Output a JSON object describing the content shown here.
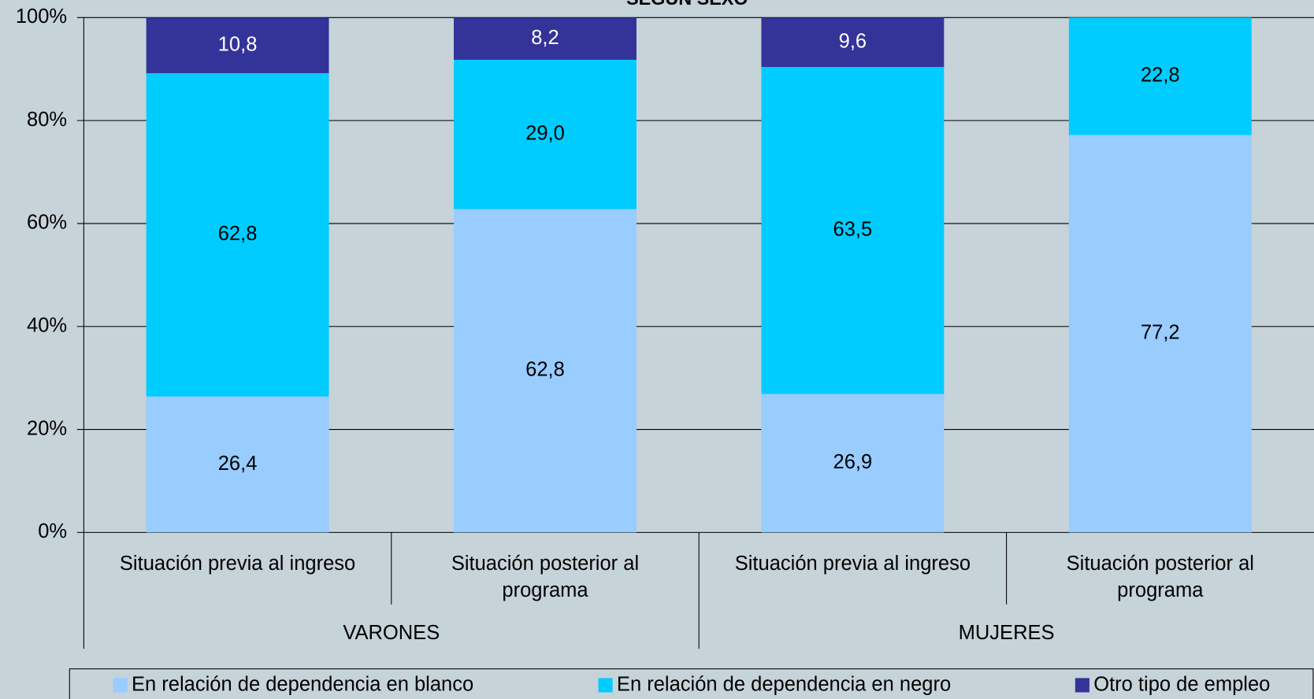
{
  "chart_data": {
    "type": "stacked_bar",
    "title": "SEGÚN SEXO",
    "categories": [
      "Situación previa al ingreso",
      "Situación posterior al programa",
      "Situación previa al ingreso",
      "Situación posterior al programa"
    ],
    "groups": [
      "VARONES",
      "MUJERES"
    ],
    "series": [
      {
        "name": "En relación de dependencia en blanco",
        "color": "#99ccff",
        "values": [
          26.4,
          62.8,
          26.9,
          77.2
        ],
        "value_labels": [
          "26,4",
          "62,8",
          "26,9",
          "77,2"
        ]
      },
      {
        "name": "En relación de dependencia en negro",
        "color": "#00ccff",
        "values": [
          62.8,
          29.0,
          63.5,
          22.8
        ],
        "value_labels": [
          "62,8",
          "29,0",
          "63,5",
          "22,8"
        ]
      },
      {
        "name": "Otro tipo de empleo",
        "color": "#333399",
        "values": [
          10.8,
          8.2,
          9.6,
          null
        ],
        "value_labels": [
          "10,8",
          "8,2",
          "9,6",
          null
        ]
      }
    ],
    "ylim": [
      0,
      100
    ],
    "yticks": [
      {
        "value": 0,
        "label": "0%"
      },
      {
        "value": 20,
        "label": "20%"
      },
      {
        "value": 40,
        "label": "40%"
      },
      {
        "value": 60,
        "label": "60%"
      },
      {
        "value": 80,
        "label": "80%"
      },
      {
        "value": 100,
        "label": "100%"
      }
    ],
    "grid": true,
    "legend": "bottom"
  }
}
